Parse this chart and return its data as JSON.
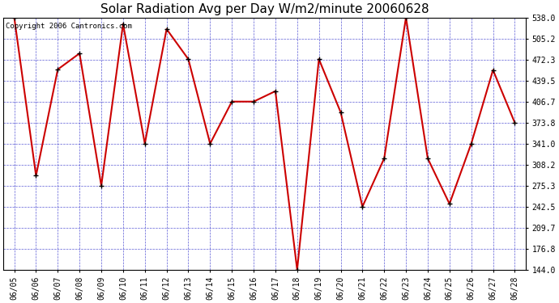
{
  "title": "Solar Radiation Avg per Day W/m2/minute 20060628",
  "copyright": "Copyright 2006 Cantronics.com",
  "dates": [
    "06/05",
    "06/06",
    "06/07",
    "06/08",
    "06/09",
    "06/10",
    "06/11",
    "06/12",
    "06/13",
    "06/14",
    "06/15",
    "06/16",
    "06/17",
    "06/18",
    "06/19",
    "06/20",
    "06/21",
    "06/22",
    "06/23",
    "06/24",
    "06/25",
    "06/26",
    "06/27",
    "06/28"
  ],
  "values": [
    538.0,
    291.0,
    457.0,
    482.0,
    275.3,
    528.0,
    341.0,
    520.0,
    473.0,
    341.0,
    406.7,
    406.7,
    423.0,
    144.0,
    473.0,
    390.0,
    242.5,
    318.0,
    538.0,
    318.0,
    247.0,
    341.0,
    456.0,
    373.8
  ],
  "ylim_min": 144.0,
  "ylim_max": 538.0,
  "yticks": [
    144.0,
    176.8,
    209.7,
    242.5,
    275.3,
    308.2,
    341.0,
    373.8,
    406.7,
    439.5,
    472.3,
    505.2,
    538.0
  ],
  "ytick_labels": [
    "144.0",
    "176.8",
    "209.7",
    "242.5",
    "275.3",
    "308.2",
    "341.0",
    "373.8",
    "406.7",
    "439.5",
    "472.3",
    "505.2",
    "538.0"
  ],
  "line_color": "#cc0000",
  "marker_color": "#000000",
  "fig_bg_color": "#ffffff",
  "plot_bg_color": "#ffffff",
  "grid_color": "#3333cc",
  "title_color": "#000000",
  "axis_label_color": "#000000",
  "copyright_color": "#000000",
  "title_fontsize": 11,
  "tick_fontsize": 7,
  "copyright_fontsize": 6.5,
  "line_width": 1.5,
  "marker_size": 4
}
